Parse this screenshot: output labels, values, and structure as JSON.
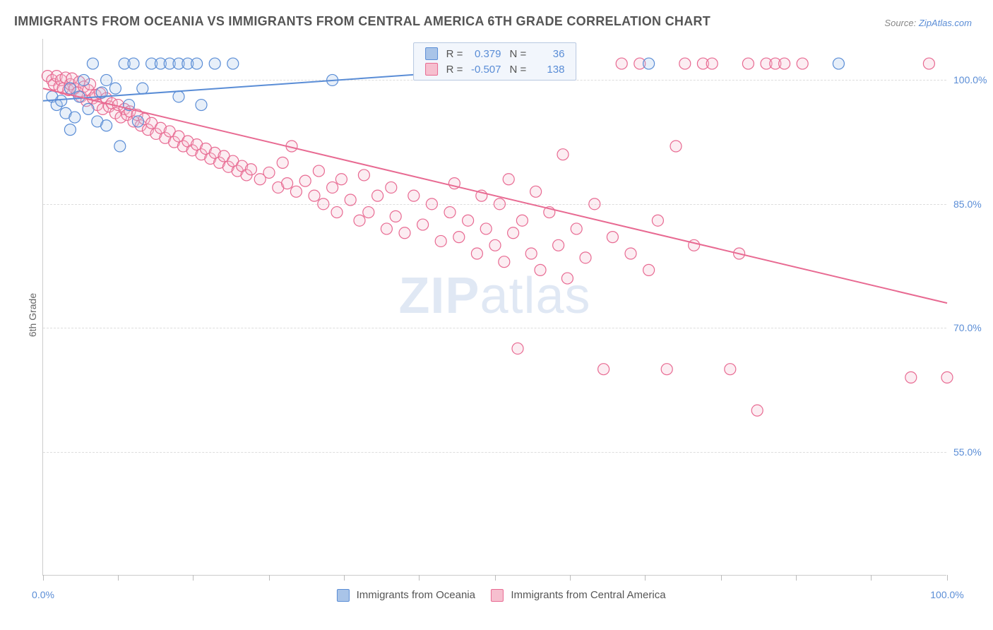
{
  "title": "IMMIGRANTS FROM OCEANIA VS IMMIGRANTS FROM CENTRAL AMERICA 6TH GRADE CORRELATION CHART",
  "source_label": "Source:",
  "source_link": "ZipAtlas.com",
  "ylabel": "6th Grade",
  "watermark_bold": "ZIP",
  "watermark_rest": "atlas",
  "chart": {
    "type": "scatter",
    "xlim": [
      0,
      100
    ],
    "ylim": [
      40,
      105
    ],
    "x_tick_positions": [
      0,
      8.3,
      16.6,
      25,
      33.3,
      41.6,
      50,
      58.3,
      66.6,
      75,
      83.3,
      91.6,
      100
    ],
    "x_tick_labels": {
      "0": "0.0%",
      "100": "100.0%"
    },
    "y_gridlines": [
      55,
      70,
      85,
      100
    ],
    "y_tick_labels": {
      "55": "55.0%",
      "70": "70.0%",
      "85": "85.0%",
      "100": "100.0%"
    },
    "grid_color": "#dddddd",
    "axis_color": "#cccccc",
    "tick_label_color": "#5a8dd6",
    "background_color": "#ffffff",
    "marker_radius": 8,
    "marker_stroke_width": 1.2,
    "marker_fill_opacity": 0.28,
    "trend_line_width": 2
  },
  "series": [
    {
      "id": "oceania",
      "label": "Immigrants from Oceania",
      "color": "#5a8dd6",
      "fill": "#a9c4e8",
      "R": "0.379",
      "N": "36",
      "trend": {
        "x1": 0,
        "y1": 97.5,
        "x2": 52,
        "y2": 101.5
      },
      "points": [
        [
          1,
          98
        ],
        [
          1.5,
          97
        ],
        [
          2,
          97.5
        ],
        [
          2.5,
          96
        ],
        [
          3,
          99
        ],
        [
          3,
          94
        ],
        [
          3.5,
          95.5
        ],
        [
          4,
          98
        ],
        [
          4.5,
          100
        ],
        [
          5,
          96.5
        ],
        [
          5.5,
          102
        ],
        [
          6,
          95
        ],
        [
          6.5,
          98.5
        ],
        [
          7,
          100
        ],
        [
          7,
          94.5
        ],
        [
          8,
          99
        ],
        [
          8.5,
          92
        ],
        [
          9,
          102
        ],
        [
          9.5,
          97
        ],
        [
          10,
          102
        ],
        [
          10.5,
          95
        ],
        [
          11,
          99
        ],
        [
          12,
          102
        ],
        [
          13,
          102
        ],
        [
          14,
          102
        ],
        [
          15,
          102
        ],
        [
          15,
          98
        ],
        [
          16,
          102
        ],
        [
          17,
          102
        ],
        [
          17.5,
          97
        ],
        [
          19,
          102
        ],
        [
          21,
          102
        ],
        [
          32,
          100
        ],
        [
          57,
          102
        ],
        [
          67,
          102
        ],
        [
          88,
          102
        ]
      ]
    },
    {
      "id": "central_america",
      "label": "Immigrants from Central America",
      "color": "#e86a92",
      "fill": "#f6bfcf",
      "R": "-0.507",
      "N": "138",
      "trend": {
        "x1": 0,
        "y1": 99,
        "x2": 100,
        "y2": 73
      },
      "points": [
        [
          0.5,
          100.5
        ],
        [
          1,
          100
        ],
        [
          1.2,
          99.5
        ],
        [
          1.5,
          100.5
        ],
        [
          1.8,
          99.2
        ],
        [
          2,
          100
        ],
        [
          2.2,
          99
        ],
        [
          2.5,
          100.3
        ],
        [
          2.8,
          98.8
        ],
        [
          3,
          99.5
        ],
        [
          3.2,
          100.2
        ],
        [
          3.5,
          99
        ],
        [
          3.8,
          98.5
        ],
        [
          4,
          99.8
        ],
        [
          4.2,
          98
        ],
        [
          4.5,
          99.2
        ],
        [
          4.8,
          97.5
        ],
        [
          5,
          98.8
        ],
        [
          5.2,
          99.5
        ],
        [
          5.5,
          97.8
        ],
        [
          5.8,
          98.2
        ],
        [
          6,
          97
        ],
        [
          6.3,
          98.4
        ],
        [
          6.6,
          96.5
        ],
        [
          7,
          97.8
        ],
        [
          7.3,
          96.8
        ],
        [
          7.6,
          97.2
        ],
        [
          8,
          96
        ],
        [
          8.3,
          97
        ],
        [
          8.6,
          95.5
        ],
        [
          9,
          96.5
        ],
        [
          9.3,
          95.8
        ],
        [
          9.6,
          96.2
        ],
        [
          10,
          95
        ],
        [
          10.4,
          95.8
        ],
        [
          10.8,
          94.5
        ],
        [
          11.2,
          95.3
        ],
        [
          11.6,
          94
        ],
        [
          12,
          94.8
        ],
        [
          12.5,
          93.5
        ],
        [
          13,
          94.2
        ],
        [
          13.5,
          93
        ],
        [
          14,
          93.8
        ],
        [
          14.5,
          92.5
        ],
        [
          15,
          93.2
        ],
        [
          15.5,
          92
        ],
        [
          16,
          92.6
        ],
        [
          16.5,
          91.5
        ],
        [
          17,
          92.2
        ],
        [
          17.5,
          91
        ],
        [
          18,
          91.7
        ],
        [
          18.5,
          90.5
        ],
        [
          19,
          91.2
        ],
        [
          19.5,
          90
        ],
        [
          20,
          90.8
        ],
        [
          20.5,
          89.5
        ],
        [
          21,
          90.2
        ],
        [
          21.5,
          89
        ],
        [
          22,
          89.6
        ],
        [
          22.5,
          88.5
        ],
        [
          23,
          89.2
        ],
        [
          24,
          88
        ],
        [
          25,
          88.8
        ],
        [
          26,
          87
        ],
        [
          26.5,
          90
        ],
        [
          27,
          87.5
        ],
        [
          27.5,
          92
        ],
        [
          28,
          86.5
        ],
        [
          29,
          87.8
        ],
        [
          30,
          86
        ],
        [
          30.5,
          89
        ],
        [
          31,
          85
        ],
        [
          32,
          87
        ],
        [
          32.5,
          84
        ],
        [
          33,
          88
        ],
        [
          34,
          85.5
        ],
        [
          35,
          83
        ],
        [
          35.5,
          88.5
        ],
        [
          36,
          84
        ],
        [
          37,
          86
        ],
        [
          38,
          82
        ],
        [
          38.5,
          87
        ],
        [
          39,
          83.5
        ],
        [
          40,
          81.5
        ],
        [
          41,
          86
        ],
        [
          42,
          82.5
        ],
        [
          43,
          85
        ],
        [
          44,
          80.5
        ],
        [
          45,
          84
        ],
        [
          45.5,
          87.5
        ],
        [
          46,
          81
        ],
        [
          47,
          83
        ],
        [
          48,
          79
        ],
        [
          48.5,
          86
        ],
        [
          49,
          82
        ],
        [
          50,
          80
        ],
        [
          50.5,
          85
        ],
        [
          51,
          78
        ],
        [
          51.5,
          88
        ],
        [
          52,
          81.5
        ],
        [
          52.5,
          67.5
        ],
        [
          53,
          83
        ],
        [
          54,
          79
        ],
        [
          54.5,
          86.5
        ],
        [
          55,
          77
        ],
        [
          56,
          84
        ],
        [
          57,
          80
        ],
        [
          57.5,
          91
        ],
        [
          58,
          76
        ],
        [
          59,
          82
        ],
        [
          60,
          78.5
        ],
        [
          61,
          85
        ],
        [
          62,
          65
        ],
        [
          63,
          81
        ],
        [
          64,
          102
        ],
        [
          65,
          79
        ],
        [
          66,
          102
        ],
        [
          67,
          77
        ],
        [
          68,
          83
        ],
        [
          69,
          65
        ],
        [
          70,
          92
        ],
        [
          71,
          102
        ],
        [
          72,
          80
        ],
        [
          73,
          102
        ],
        [
          74,
          102
        ],
        [
          76,
          65
        ],
        [
          77,
          79
        ],
        [
          78,
          102
        ],
        [
          79,
          60
        ],
        [
          80,
          102
        ],
        [
          81,
          102
        ],
        [
          82,
          102
        ],
        [
          84,
          102
        ],
        [
          96,
          64
        ],
        [
          98,
          102
        ],
        [
          100,
          64
        ]
      ]
    }
  ],
  "legend": {
    "R_label": "R =",
    "N_label": "N ="
  }
}
